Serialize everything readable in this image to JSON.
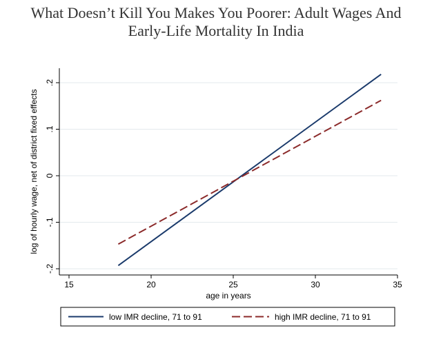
{
  "page_title": {
    "line1": "What Doesn’t Kill You Makes You Poorer: Adult Wages And",
    "line2": "Early-Life Mortality In India"
  },
  "chart_data": {
    "type": "line",
    "title": "What Doesn’t Kill You Makes You Poorer: Adult Wages And Early-Life Mortality In India",
    "xlabel": "age in years",
    "ylabel": "log of hourly wage, net of district fixed effects",
    "xlim": [
      15,
      35
    ],
    "ylim": [
      -0.2,
      0.2
    ],
    "xticks": [
      15,
      20,
      25,
      30,
      35
    ],
    "xtick_labels": [
      "15",
      "20",
      "25",
      "30",
      "35"
    ],
    "yticks": [
      -0.2,
      -0.1,
      0,
      0.1,
      0.2
    ],
    "ytick_labels": [
      "-.2",
      "-.1",
      "0",
      ".1",
      ".2"
    ],
    "grid": true,
    "legend_position": "bottom",
    "series": [
      {
        "name": "low IMR decline, 71 to 91",
        "x": [
          18,
          34
        ],
        "y": [
          -0.193,
          0.218
        ],
        "color": "#1a3a6b",
        "style": "solid"
      },
      {
        "name": "high IMR decline, 71 to 91",
        "x": [
          18,
          34
        ],
        "y": [
          -0.147,
          0.162
        ],
        "color": "#8b2a2a",
        "style": "dashed"
      }
    ]
  }
}
